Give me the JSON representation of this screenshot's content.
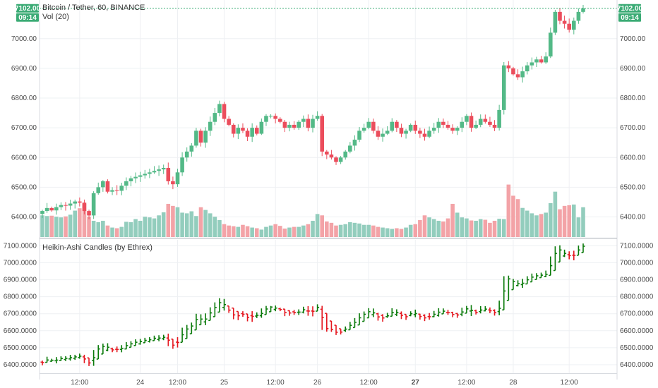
{
  "header": {
    "symbol_title": "Bitcoin / Tether, 60, BINANCE",
    "volume_label": "Vol (20)",
    "price_tag": "7102.00",
    "countdown_tag": "09:14",
    "indicator_title": "Heikin-Ashi Candles (by Ethrex)"
  },
  "colors": {
    "up": "#53b987",
    "down": "#eb4d5c",
    "vol_up": "#93cdbd",
    "vol_down": "#f3a3a7",
    "ha_up": "#0a7a0a",
    "ha_down": "#e5171f",
    "tag": "#3bab75",
    "grid": "#eef0f3",
    "axis": "#9aa0a6"
  },
  "chart_data": [
    {
      "type": "candlestick",
      "title": "Bitcoin / Tether, 60, BINANCE",
      "ylim": [
        6330,
        7130
      ],
      "y_ticks": [
        "7000.00",
        "6900.00",
        "6800.00",
        "6700.00",
        "6600.00",
        "6500.00",
        "6400.00"
      ],
      "y_tick_values": [
        7000,
        6900,
        6800,
        6700,
        6600,
        6500,
        6400
      ],
      "x_ticks": [
        "12:00",
        "24",
        "12:00",
        "25",
        "12:00",
        "26",
        "12:00",
        "27",
        "12:00",
        "28",
        "12:00"
      ],
      "x_tick_bold": [
        "27"
      ],
      "close": [
        6420,
        6430,
        6422,
        6433,
        6440,
        6438,
        6445,
        6452,
        6448,
        6420,
        6405,
        6480,
        6500,
        6520,
        6485,
        6490,
        6488,
        6505,
        6520,
        6530,
        6535,
        6540,
        6545,
        6550,
        6555,
        6560,
        6565,
        6520,
        6510,
        6550,
        6600,
        6620,
        6640,
        6690,
        6650,
        6690,
        6720,
        6750,
        6780,
        6730,
        6710,
        6680,
        6700,
        6690,
        6670,
        6700,
        6680,
        6720,
        6740,
        6740,
        6730,
        6720,
        6700,
        6710,
        6700,
        6720,
        6730,
        6700,
        6730,
        6740,
        6620,
        6610,
        6600,
        6585,
        6600,
        6620,
        6640,
        6660,
        6690,
        6700,
        6720,
        6690,
        6670,
        6680,
        6690,
        6720,
        6700,
        6680,
        6690,
        6710,
        6690,
        6680,
        6670,
        6690,
        6700,
        6720,
        6710,
        6700,
        6690,
        6700,
        6720,
        6740,
        6700,
        6710,
        6730,
        6720,
        6710,
        6700,
        6760,
        6910,
        6900,
        6880,
        6870,
        6890,
        6910,
        6920,
        6930,
        6920,
        6940,
        7020,
        7090,
        7060,
        7050,
        7030,
        7060,
        7090,
        7102
      ],
      "volume": [
        64,
        62,
        63,
        60,
        58,
        61,
        66,
        78,
        85,
        98,
        60,
        48,
        44,
        48,
        34,
        28,
        26,
        30,
        45,
        44,
        53,
        48,
        60,
        58,
        55,
        64,
        73,
        98,
        92,
        88,
        72,
        70,
        76,
        62,
        88,
        80,
        70,
        60,
        50,
        38,
        34,
        32,
        30,
        36,
        32,
        28,
        26,
        22,
        30,
        34,
        38,
        33,
        25,
        28,
        30,
        30,
        34,
        38,
        48,
        68,
        64,
        46,
        42,
        34,
        36,
        38,
        44,
        42,
        40,
        36,
        36,
        34,
        30,
        28,
        26,
        24,
        26,
        24,
        28,
        36,
        38,
        50,
        64,
        58,
        53,
        48,
        46,
        55,
        98,
        72,
        58,
        55,
        49,
        48,
        53,
        51,
        42,
        48,
        54,
        53,
        155,
        122,
        112,
        86,
        78,
        70,
        64,
        68,
        72,
        100,
        134,
        82,
        92,
        94,
        96,
        58,
        88
      ]
    },
    {
      "type": "heikin-ashi",
      "title": "Heikin-Ashi Candles (by Ethrex)",
      "ylim": [
        6350,
        7135
      ],
      "y_ticks": [
        "7100.0000",
        "7000.0000",
        "6900.0000",
        "6800.0000",
        "6700.0000",
        "6600.0000",
        "6500.0000",
        "6400.0000"
      ],
      "y_tick_values": [
        7100,
        7000,
        6900,
        6800,
        6700,
        6600,
        6500,
        6400
      ]
    }
  ]
}
